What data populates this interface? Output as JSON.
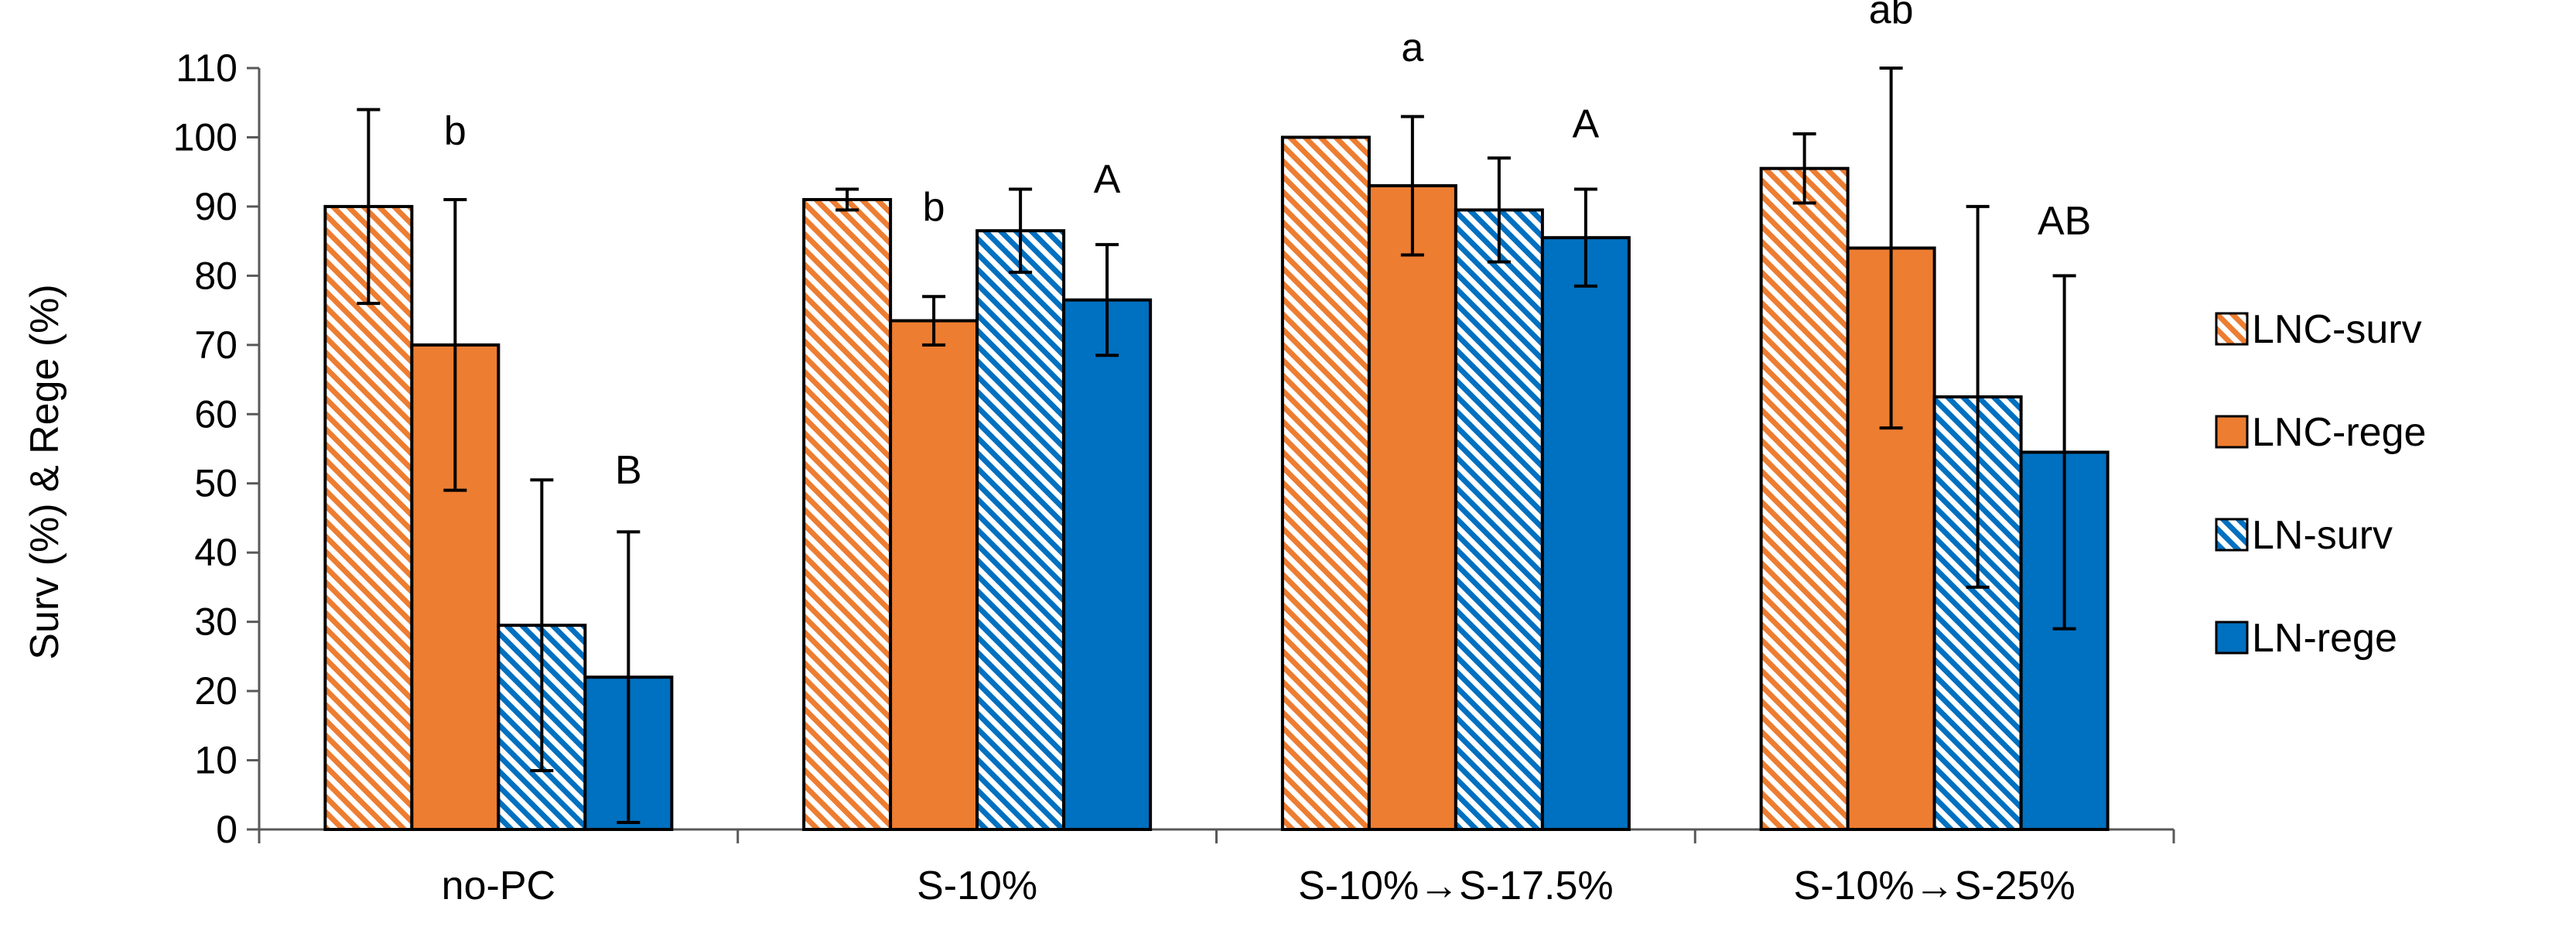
{
  "chart_data": {
    "type": "bar",
    "title": "",
    "xlabel": "",
    "ylabel": "Surv (%) & Rege (%)",
    "ylim": [
      0,
      110
    ],
    "yticks": [
      0,
      10,
      20,
      30,
      40,
      50,
      60,
      70,
      80,
      90,
      100,
      110
    ],
    "categories": [
      "no-PC",
      "S-10%",
      "S-10%→S-17.5%",
      "S-10%→S-25%"
    ],
    "legend_position": "right",
    "series": [
      {
        "name": "LNC-surv",
        "color": "#ED7D31",
        "pattern": "hatched",
        "values": [
          90,
          91,
          100,
          95.5
        ],
        "errors": [
          14,
          1.5,
          0,
          5
        ]
      },
      {
        "name": "LNC-rege",
        "color": "#ED7D31",
        "pattern": "solid",
        "values": [
          70,
          73.5,
          93,
          84
        ],
        "errors": [
          21,
          3.5,
          10,
          26
        ]
      },
      {
        "name": "LN-surv",
        "color": "#0070C0",
        "pattern": "hatched",
        "values": [
          29.5,
          86.5,
          89.5,
          62.5
        ],
        "errors": [
          21,
          6,
          7.5,
          27.5
        ]
      },
      {
        "name": "LN-rege",
        "color": "#0070C0",
        "pattern": "solid",
        "values": [
          22,
          76.5,
          85.5,
          54.5
        ],
        "errors": [
          21,
          8,
          7,
          25.5
        ]
      }
    ],
    "annotations": [
      {
        "text": "b",
        "category": 0,
        "series": 1,
        "y": 101
      },
      {
        "text": "B",
        "category": 0,
        "series": 3,
        "y": 52
      },
      {
        "text": "b",
        "category": 1,
        "series": 1,
        "y": 90
      },
      {
        "text": "A",
        "category": 1,
        "series": 3,
        "y": 94
      },
      {
        "text": "a",
        "category": 2,
        "series": 1,
        "y": 113
      },
      {
        "text": "A",
        "category": 2,
        "series": 3,
        "y": 102
      },
      {
        "text": "ab",
        "category": 3,
        "series": 1,
        "y": 118.5
      },
      {
        "text": "AB",
        "category": 3,
        "series": 3,
        "y": 88
      }
    ]
  }
}
